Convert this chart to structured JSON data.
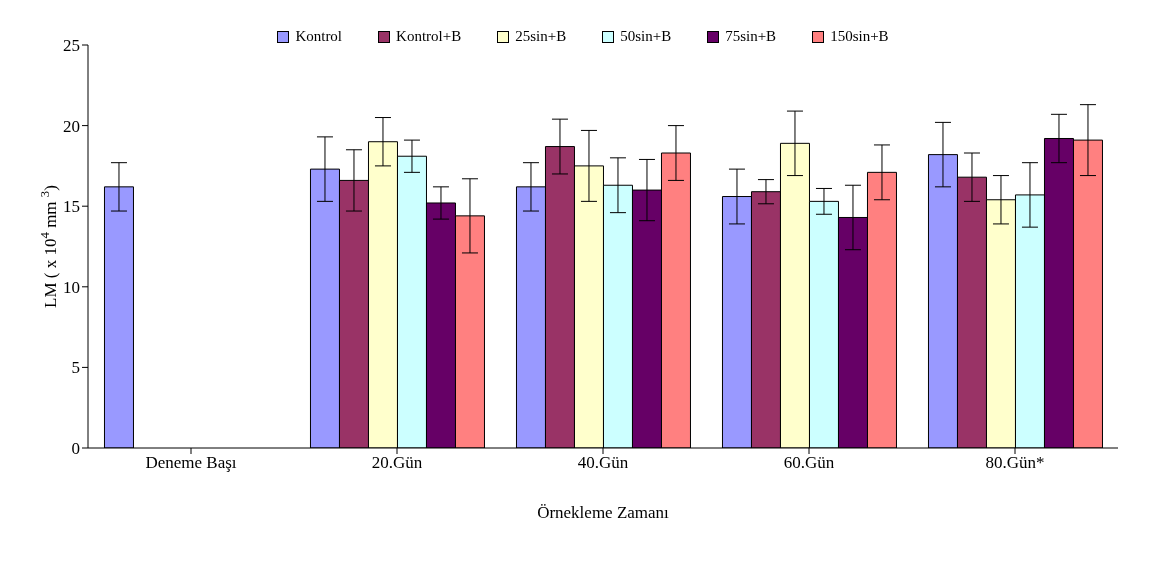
{
  "chart_data": {
    "type": "bar",
    "xlabel": "Örnekleme Zamanı",
    "ylabel": "LM ( x 10$^{4}$ mm $^{3}$)",
    "categories": [
      "Deneme Başı",
      "20.Gün",
      "40.Gün",
      "60.Gün",
      "80.Gün*"
    ],
    "series": [
      {
        "name": "Kontrol",
        "color": "#9999ff",
        "values": [
          16.2,
          17.3,
          16.2,
          15.6,
          18.2
        ],
        "errors": [
          1.5,
          2.0,
          1.5,
          1.7,
          2.0
        ]
      },
      {
        "name": "Kontrol+B",
        "color": "#993366",
        "values": [
          null,
          16.6,
          18.7,
          15.9,
          16.8
        ],
        "errors": [
          null,
          1.9,
          1.7,
          0.75,
          1.5
        ]
      },
      {
        "name": "25sin+B",
        "color": "#ffffcc",
        "values": [
          null,
          19.0,
          17.5,
          18.9,
          15.4
        ],
        "errors": [
          null,
          1.5,
          2.2,
          2.0,
          1.5
        ]
      },
      {
        "name": "50sin+B",
        "color": "#ccffff",
        "values": [
          null,
          18.1,
          16.3,
          15.3,
          15.7
        ],
        "errors": [
          null,
          1.0,
          1.7,
          0.8,
          2.0
        ]
      },
      {
        "name": "75sin+B",
        "color": "#660066",
        "values": [
          null,
          15.2,
          16.0,
          14.3,
          19.2
        ],
        "errors": [
          null,
          1.0,
          1.9,
          2.0,
          1.5
        ]
      },
      {
        "name": "150sin+B",
        "color": "#ff8080",
        "values": [
          null,
          14.4,
          18.3,
          17.1,
          19.1
        ],
        "errors": [
          null,
          2.3,
          1.7,
          1.7,
          2.2
        ]
      }
    ],
    "ylim": [
      0,
      25
    ],
    "yticks": [
      0,
      5,
      10,
      15,
      20,
      25
    ],
    "grid": false,
    "legend": "top"
  }
}
